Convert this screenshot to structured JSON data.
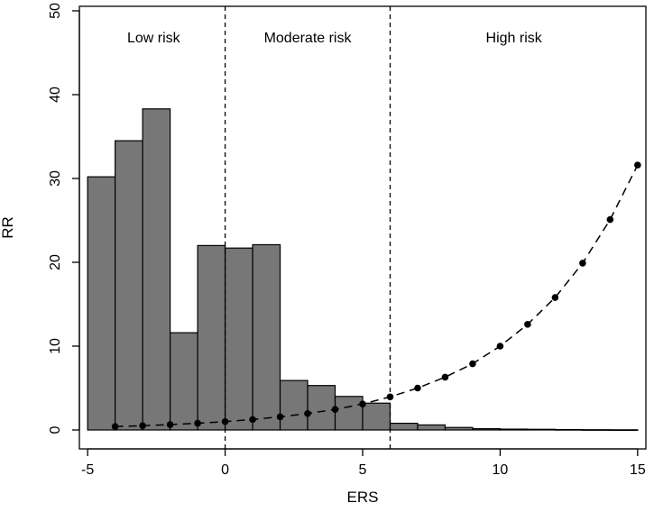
{
  "chart_data": {
    "type": "bar",
    "xlabel": "ERS",
    "ylabel": "RR",
    "xlim": [
      -5.3,
      15.3
    ],
    "ylim": [
      0,
      50
    ],
    "x_ticks": [
      -5,
      0,
      5,
      10,
      15
    ],
    "y_ticks": [
      0,
      10,
      20,
      30,
      40,
      50
    ],
    "grid": false,
    "legend": "none",
    "bar_color": "#777777",
    "histogram": {
      "bin_width": 1,
      "bins": [
        {
          "x0": -5,
          "x1": -4,
          "value": 30.2
        },
        {
          "x0": -4,
          "x1": -3,
          "value": 34.5
        },
        {
          "x0": -3,
          "x1": -2,
          "value": 38.3
        },
        {
          "x0": -2,
          "x1": -1,
          "value": 11.6
        },
        {
          "x0": -1,
          "x1": 0,
          "value": 22.0
        },
        {
          "x0": 0,
          "x1": 1,
          "value": 21.7
        },
        {
          "x0": 1,
          "x1": 2,
          "value": 22.1
        },
        {
          "x0": 2,
          "x1": 3,
          "value": 5.9
        },
        {
          "x0": 3,
          "x1": 4,
          "value": 5.3
        },
        {
          "x0": 4,
          "x1": 5,
          "value": 4.0
        },
        {
          "x0": 5,
          "x1": 6,
          "value": 3.2
        },
        {
          "x0": 6,
          "x1": 7,
          "value": 0.8
        },
        {
          "x0": 7,
          "x1": 8,
          "value": 0.6
        },
        {
          "x0": 8,
          "x1": 9,
          "value": 0.3
        },
        {
          "x0": 9,
          "x1": 10,
          "value": 0.15
        },
        {
          "x0": 10,
          "x1": 11,
          "value": 0.1
        },
        {
          "x0": 11,
          "x1": 12,
          "value": 0.08
        },
        {
          "x0": 12,
          "x1": 13,
          "value": 0.05
        },
        {
          "x0": 13,
          "x1": 14,
          "value": 0.03
        },
        {
          "x0": 14,
          "x1": 15,
          "value": 0.02
        }
      ]
    },
    "rr_points": {
      "x": [
        -4,
        -3,
        -2,
        -1,
        0,
        1,
        2,
        3,
        4,
        5,
        6,
        7,
        8,
        9,
        10,
        11,
        12,
        13,
        14,
        15
      ],
      "y": [
        0.41,
        0.51,
        0.64,
        0.8,
        1.0,
        1.25,
        1.57,
        1.96,
        2.45,
        3.1,
        3.95,
        5.0,
        6.3,
        7.9,
        10.0,
        12.6,
        15.8,
        19.9,
        25.1,
        31.6
      ]
    },
    "cutoffs": [
      0,
      6
    ],
    "regions": [
      {
        "label": "Low risk",
        "x": -2.6
      },
      {
        "label": "Moderate risk",
        "x": 3.0
      },
      {
        "label": "High risk",
        "x": 10.5
      }
    ]
  }
}
